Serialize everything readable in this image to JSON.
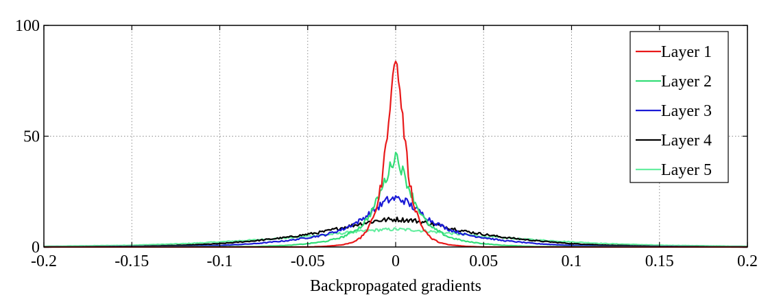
{
  "chart_data": {
    "type": "line",
    "title": "",
    "xlabel": "Backpropagated gradients",
    "ylabel": "",
    "xlim": [
      -0.2,
      0.2
    ],
    "ylim": [
      0,
      100
    ],
    "xticks": [
      -0.2,
      -0.15,
      -0.1,
      -0.05,
      0,
      0.05,
      0.1,
      0.15,
      0.2
    ],
    "xtick_labels": [
      "-0.2",
      "-0.15",
      "-0.1",
      "-0.05",
      "0",
      "0.05",
      "0.1",
      "0.15",
      "0.2"
    ],
    "yticks": [
      0,
      50,
      100
    ],
    "ytick_labels": [
      "0",
      "50",
      "100"
    ],
    "grid": true,
    "legend_position": "top-right",
    "series": [
      {
        "name": "Layer 1",
        "color": "#e8191a",
        "x": [
          -0.2,
          -0.05,
          -0.04,
          -0.03,
          -0.025,
          -0.02,
          -0.015,
          -0.01,
          -0.0075,
          -0.005,
          -0.0025,
          0,
          0.0025,
          0.005,
          0.0075,
          0.01,
          0.015,
          0.02,
          0.025,
          0.03,
          0.04,
          0.05,
          0.2
        ],
        "y": [
          0,
          0,
          0.3,
          1.0,
          2.0,
          4.0,
          9,
          20,
          32,
          50,
          70,
          86,
          70,
          50,
          32,
          20,
          9,
          4.0,
          2.0,
          1.0,
          0.3,
          0,
          0
        ]
      },
      {
        "name": "Layer 2",
        "color": "#33dd77",
        "x": [
          -0.2,
          -0.08,
          -0.06,
          -0.05,
          -0.04,
          -0.03,
          -0.02,
          -0.015,
          -0.01,
          -0.005,
          0,
          0.005,
          0.01,
          0.015,
          0.02,
          0.03,
          0.04,
          0.05,
          0.06,
          0.08,
          0.2
        ],
        "y": [
          0,
          0.2,
          0.8,
          1.5,
          2.5,
          4.5,
          9,
          14,
          22,
          32,
          42,
          32,
          22,
          14,
          9,
          4.5,
          2.5,
          1.5,
          0.8,
          0.2,
          0
        ]
      },
      {
        "name": "Layer 3",
        "color": "#1a1ad6",
        "x": [
          -0.2,
          -0.12,
          -0.1,
          -0.08,
          -0.06,
          -0.04,
          -0.03,
          -0.02,
          -0.01,
          -0.005,
          0,
          0.005,
          0.01,
          0.02,
          0.03,
          0.04,
          0.06,
          0.08,
          0.1,
          0.12,
          0.2
        ],
        "y": [
          0,
          0.3,
          0.7,
          1.5,
          3,
          5.5,
          8,
          12,
          18,
          21,
          22,
          21,
          18,
          12,
          8,
          5.5,
          3,
          1.5,
          0.7,
          0.3,
          0
        ]
      },
      {
        "name": "Layer 4",
        "color": "#000000",
        "x": [
          -0.2,
          -0.15,
          -0.12,
          -0.1,
          -0.08,
          -0.06,
          -0.04,
          -0.03,
          -0.02,
          -0.01,
          0,
          0.01,
          0.02,
          0.03,
          0.04,
          0.06,
          0.08,
          0.1,
          0.12,
          0.15,
          0.2
        ],
        "y": [
          0,
          0.3,
          0.8,
          1.5,
          2.8,
          4.5,
          7,
          8.8,
          10.5,
          12,
          12.5,
          12,
          10.5,
          8.8,
          7,
          4.5,
          2.8,
          1.5,
          0.8,
          0.3,
          0
        ]
      },
      {
        "name": "Layer 5",
        "color": "#66eea0",
        "x": [
          -0.2,
          -0.15,
          -0.12,
          -0.1,
          -0.08,
          -0.06,
          -0.04,
          -0.02,
          -0.01,
          0,
          0.01,
          0.02,
          0.04,
          0.06,
          0.08,
          0.1,
          0.12,
          0.15,
          0.2
        ],
        "y": [
          0.3,
          0.8,
          1.5,
          2.3,
          3.2,
          4.2,
          5.5,
          7,
          7.7,
          8,
          7.7,
          7,
          5.5,
          4.2,
          3.2,
          2.3,
          1.5,
          0.8,
          0.3
        ]
      }
    ]
  }
}
